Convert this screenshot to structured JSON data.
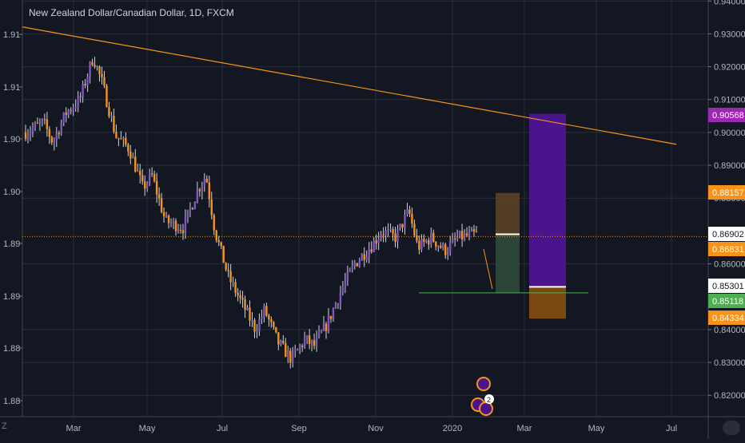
{
  "title": "New Zealand Dollar/Canadian Dollar, 1D, FXCM",
  "corner_label": "Z",
  "chart_data": {
    "type": "candlestick",
    "title": "New Zealand Dollar/Canadian Dollar, 1D, FXCM",
    "right_axis": {
      "ylim": [
        0.8135,
        0.9403
      ],
      "ticks": [
        0.94,
        0.93,
        0.92,
        0.91,
        0.9,
        0.89,
        0.88,
        0.86,
        0.84,
        0.83,
        0.82
      ]
    },
    "left_axis": {
      "labels": [
        "1.91",
        "1.91",
        "1.90",
        "1.90",
        "1.89",
        "1.89",
        "1.88",
        "1.88"
      ]
    },
    "x_axis": {
      "labels": [
        "Mar",
        "May",
        "Jul",
        "Sep",
        "Nov",
        "2020",
        "Mar",
        "May",
        "Jul"
      ]
    },
    "price_flags": [
      {
        "value": "0.90568",
        "color": "#9c27b0"
      },
      {
        "value": "0.88157",
        "color": "#f7931a"
      },
      {
        "value": "0.86902",
        "color": "#ffffff"
      },
      {
        "value": "0.86831",
        "color": "#f7931a"
      },
      {
        "value": "0.85301",
        "color": "#ffffff"
      },
      {
        "value": "0.85118",
        "color": "#4caf50"
      },
      {
        "value": "0.84334",
        "color": "#f7931a"
      }
    ],
    "current_price": 0.86831,
    "trendline": {
      "from": [
        0,
        0.9321
      ],
      "to": [
        1.0,
        0.8964
      ],
      "color": "#f7931a"
    },
    "positions": [
      {
        "entry": 0.86902,
        "target": 0.85118,
        "stop": 0.88157,
        "profit_color": "#2e4a3a",
        "loss_color": "#5b4226"
      },
      {
        "entry": 0.85301,
        "target": 0.90568,
        "stop": 0.84334,
        "profit_color": "#4a148c",
        "loss_color": "#7a4a12"
      }
    ],
    "support_line": 0.85118,
    "badge": "2",
    "colors": {
      "up": "#7e57c2",
      "down": "#f7931a",
      "bg": "#131722",
      "grid": "#2a2e39"
    },
    "series_ohlc_anchor_path": [
      [
        0.0,
        0.9
      ],
      [
        0.04,
        0.903
      ],
      [
        0.06,
        0.897
      ],
      [
        0.09,
        0.906
      ],
      [
        0.12,
        0.91
      ],
      [
        0.15,
        0.923
      ],
      [
        0.17,
        0.915
      ],
      [
        0.2,
        0.899
      ],
      [
        0.23,
        0.895
      ],
      [
        0.26,
        0.883
      ],
      [
        0.28,
        0.887
      ],
      [
        0.31,
        0.873
      ],
      [
        0.35,
        0.871
      ],
      [
        0.38,
        0.882
      ],
      [
        0.4,
        0.887
      ],
      [
        0.42,
        0.87
      ],
      [
        0.45,
        0.856
      ],
      [
        0.48,
        0.848
      ],
      [
        0.51,
        0.84
      ],
      [
        0.53,
        0.846
      ],
      [
        0.56,
        0.836
      ],
      [
        0.59,
        0.831
      ],
      [
        0.62,
        0.837
      ],
      [
        0.64,
        0.835
      ],
      [
        0.67,
        0.842
      ],
      [
        0.7,
        0.852
      ],
      [
        0.73,
        0.86
      ],
      [
        0.77,
        0.866
      ],
      [
        0.79,
        0.87
      ],
      [
        0.82,
        0.868
      ],
      [
        0.85,
        0.876
      ],
      [
        0.87,
        0.865
      ],
      [
        0.9,
        0.868
      ],
      [
        0.93,
        0.864
      ],
      [
        0.96,
        0.868
      ],
      [
        1.0,
        0.869
      ]
    ]
  }
}
